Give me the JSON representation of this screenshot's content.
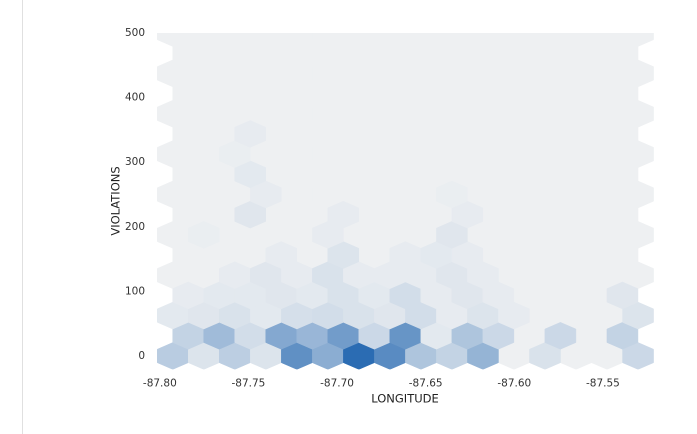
{
  "chart_data": {
    "type": "hexbin",
    "x_label": "LONGITUDE",
    "y_label": "VIOLATIONS",
    "gridsize": 15,
    "extent": [
      -87.7927,
      -87.5302,
      0,
      500
    ],
    "cmap": [
      "#eef0f2",
      "#2b6cb3"
    ],
    "xlim": [
      -87.8016,
      -87.5212
    ],
    "ylim": [
      -20.8,
      500
    ],
    "xticks": [
      {
        "value": -87.8,
        "label": "-87.80"
      },
      {
        "value": -87.75,
        "label": "-87.75"
      },
      {
        "value": -87.7,
        "label": "-87.70"
      },
      {
        "value": -87.65,
        "label": "-87.65"
      },
      {
        "value": -87.6,
        "label": "-87.60"
      },
      {
        "value": -87.55,
        "label": "-87.55"
      }
    ],
    "yticks": [
      0,
      100,
      200,
      300,
      400,
      500
    ],
    "x": [
      -87.7927,
      -87.7752,
      -87.7577,
      -87.7402,
      -87.7227,
      -87.7052,
      -87.6877,
      -87.6702,
      -87.6527,
      -87.6352,
      -87.6177,
      -87.5827,
      -87.5302,
      -87.784,
      -87.7665,
      -87.749,
      -87.7315,
      -87.714,
      -87.6965,
      -87.679,
      -87.6615,
      -87.644,
      -87.6265,
      -87.609,
      -87.574,
      -87.539,
      -87.7927,
      -87.7752,
      -87.7577,
      -87.7402,
      -87.7227,
      -87.7052,
      -87.6877,
      -87.6702,
      -87.6527,
      -87.6352,
      -87.6177,
      -87.6002,
      -87.5302,
      -87.784,
      -87.7665,
      -87.749,
      -87.7315,
      -87.714,
      -87.6965,
      -87.679,
      -87.6615,
      -87.644,
      -87.6265,
      -87.609,
      -87.539,
      -87.7577,
      -87.7402,
      -87.7227,
      -87.7052,
      -87.6877,
      -87.6702,
      -87.6527,
      -87.6352,
      -87.6177,
      -87.7315,
      -87.6965,
      -87.6615,
      -87.644,
      -87.6265,
      -87.7752,
      -87.7052,
      -87.6352,
      -87.749,
      -87.6965,
      -87.6265,
      -87.7402,
      -87.6352,
      -87.749,
      -87.7577,
      -87.749
    ],
    "y": [
      0,
      0,
      0,
      0,
      0,
      0,
      0,
      0,
      0,
      0,
      0,
      0,
      0,
      31.25,
      31.25,
      31.25,
      31.25,
      31.25,
      31.25,
      31.25,
      31.25,
      31.25,
      31.25,
      31.25,
      31.25,
      31.25,
      62.5,
      62.5,
      62.5,
      62.5,
      62.5,
      62.5,
      62.5,
      62.5,
      62.5,
      62.5,
      62.5,
      62.5,
      62.5,
      93.75,
      93.75,
      93.75,
      93.75,
      93.75,
      93.75,
      93.75,
      93.75,
      93.75,
      93.75,
      93.75,
      93.75,
      125,
      125,
      125,
      125,
      125,
      125,
      125,
      125,
      125,
      156.25,
      156.25,
      156.25,
      156.25,
      156.25,
      187.5,
      187.5,
      187.5,
      218.75,
      218.75,
      218.75,
      250,
      250,
      281.25,
      312.5,
      343.75
    ],
    "values": [
      15,
      5,
      14,
      5,
      40,
      28,
      55,
      42,
      18,
      12,
      25,
      6,
      10,
      12,
      22,
      8,
      30,
      24,
      35,
      10,
      38,
      3,
      18,
      10,
      10,
      12,
      3,
      4,
      6,
      3,
      7,
      8,
      6,
      4,
      8,
      2,
      5,
      2,
      5,
      2,
      3,
      3,
      4,
      3,
      6,
      3,
      8,
      2,
      4,
      2,
      4,
      2,
      4,
      2,
      6,
      2,
      2,
      2,
      4,
      2,
      2,
      5,
      2,
      3,
      2,
      1,
      2,
      4,
      4,
      2,
      2,
      2,
      1,
      3,
      1,
      2
    ]
  }
}
